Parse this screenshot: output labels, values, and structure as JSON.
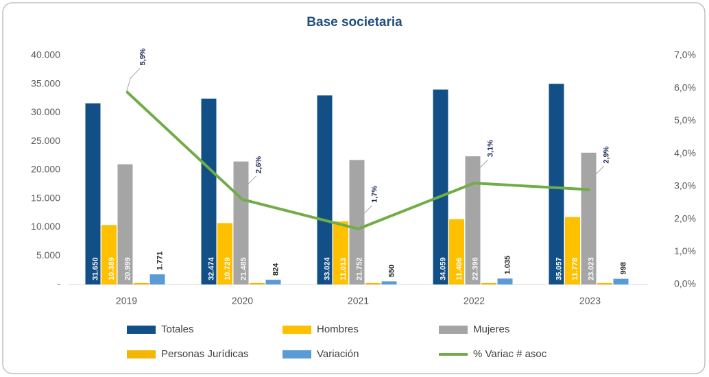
{
  "chart_data": {
    "type": "bar",
    "title": "Base societaria",
    "categories": [
      "2019",
      "2020",
      "2021",
      "2022",
      "2023"
    ],
    "series": [
      {
        "name": "Totales",
        "color": "#124f86",
        "values": [
          31650,
          32474,
          33024,
          34059,
          35057
        ],
        "value_labels": [
          "31.650",
          "32.474",
          "33.024",
          "34.059",
          "35.057"
        ]
      },
      {
        "name": "Hombres",
        "color": "#ffc000",
        "values": [
          10389,
          10729,
          11013,
          11406,
          11778
        ],
        "value_labels": [
          "10.389",
          "10.729",
          "11.013",
          "11.406",
          "11.778"
        ]
      },
      {
        "name": "Mujeres",
        "color": "#a5a5a5",
        "values": [
          20999,
          21485,
          21752,
          22396,
          23023
        ],
        "value_labels": [
          "20.999",
          "21.485",
          "21.752",
          "22.396",
          "23.023"
        ]
      },
      {
        "name": "Personas Jurídicas",
        "color": "#f2b705",
        "values": [
          262,
          260,
          259,
          257,
          256
        ]
      },
      {
        "name": "Variación",
        "color": "#5b9bd5",
        "values": [
          1771,
          824,
          550,
          1035,
          998
        ],
        "value_labels": [
          "1.771",
          "824",
          "550",
          "1.035",
          "998"
        ]
      },
      {
        "name": "% Variac # asoc",
        "type": "line",
        "axis": "y2",
        "color": "#70ad47",
        "values": [
          5.9,
          2.6,
          1.7,
          3.1,
          2.9
        ],
        "value_labels": [
          "5,9%",
          "2,6%",
          "1,7%",
          "3,1%",
          "2,9%"
        ]
      }
    ],
    "ylim": [
      0,
      40000
    ],
    "yticks": [
      {
        "value": 0,
        "label": "-"
      },
      {
        "value": 5000,
        "label": "5.000"
      },
      {
        "value": 10000,
        "label": "10.000"
      },
      {
        "value": 15000,
        "label": "15.000"
      },
      {
        "value": 20000,
        "label": "20.000"
      },
      {
        "value": 25000,
        "label": "25.000"
      },
      {
        "value": 30000,
        "label": "30.000"
      },
      {
        "value": 35000,
        "label": "35.000"
      },
      {
        "value": 40000,
        "label": "40.000"
      }
    ],
    "y2lim": [
      0,
      7
    ],
    "y2ticks": [
      {
        "value": 0,
        "label": "0,0%"
      },
      {
        "value": 1,
        "label": "1,0%"
      },
      {
        "value": 2,
        "label": "2,0%"
      },
      {
        "value": 3,
        "label": "3,0%"
      },
      {
        "value": 4,
        "label": "4,0%"
      },
      {
        "value": 5,
        "label": "5,0%"
      },
      {
        "value": 6,
        "label": "6,0%"
      },
      {
        "value": 7,
        "label": "7,0%"
      }
    ],
    "legend": "bottom"
  }
}
